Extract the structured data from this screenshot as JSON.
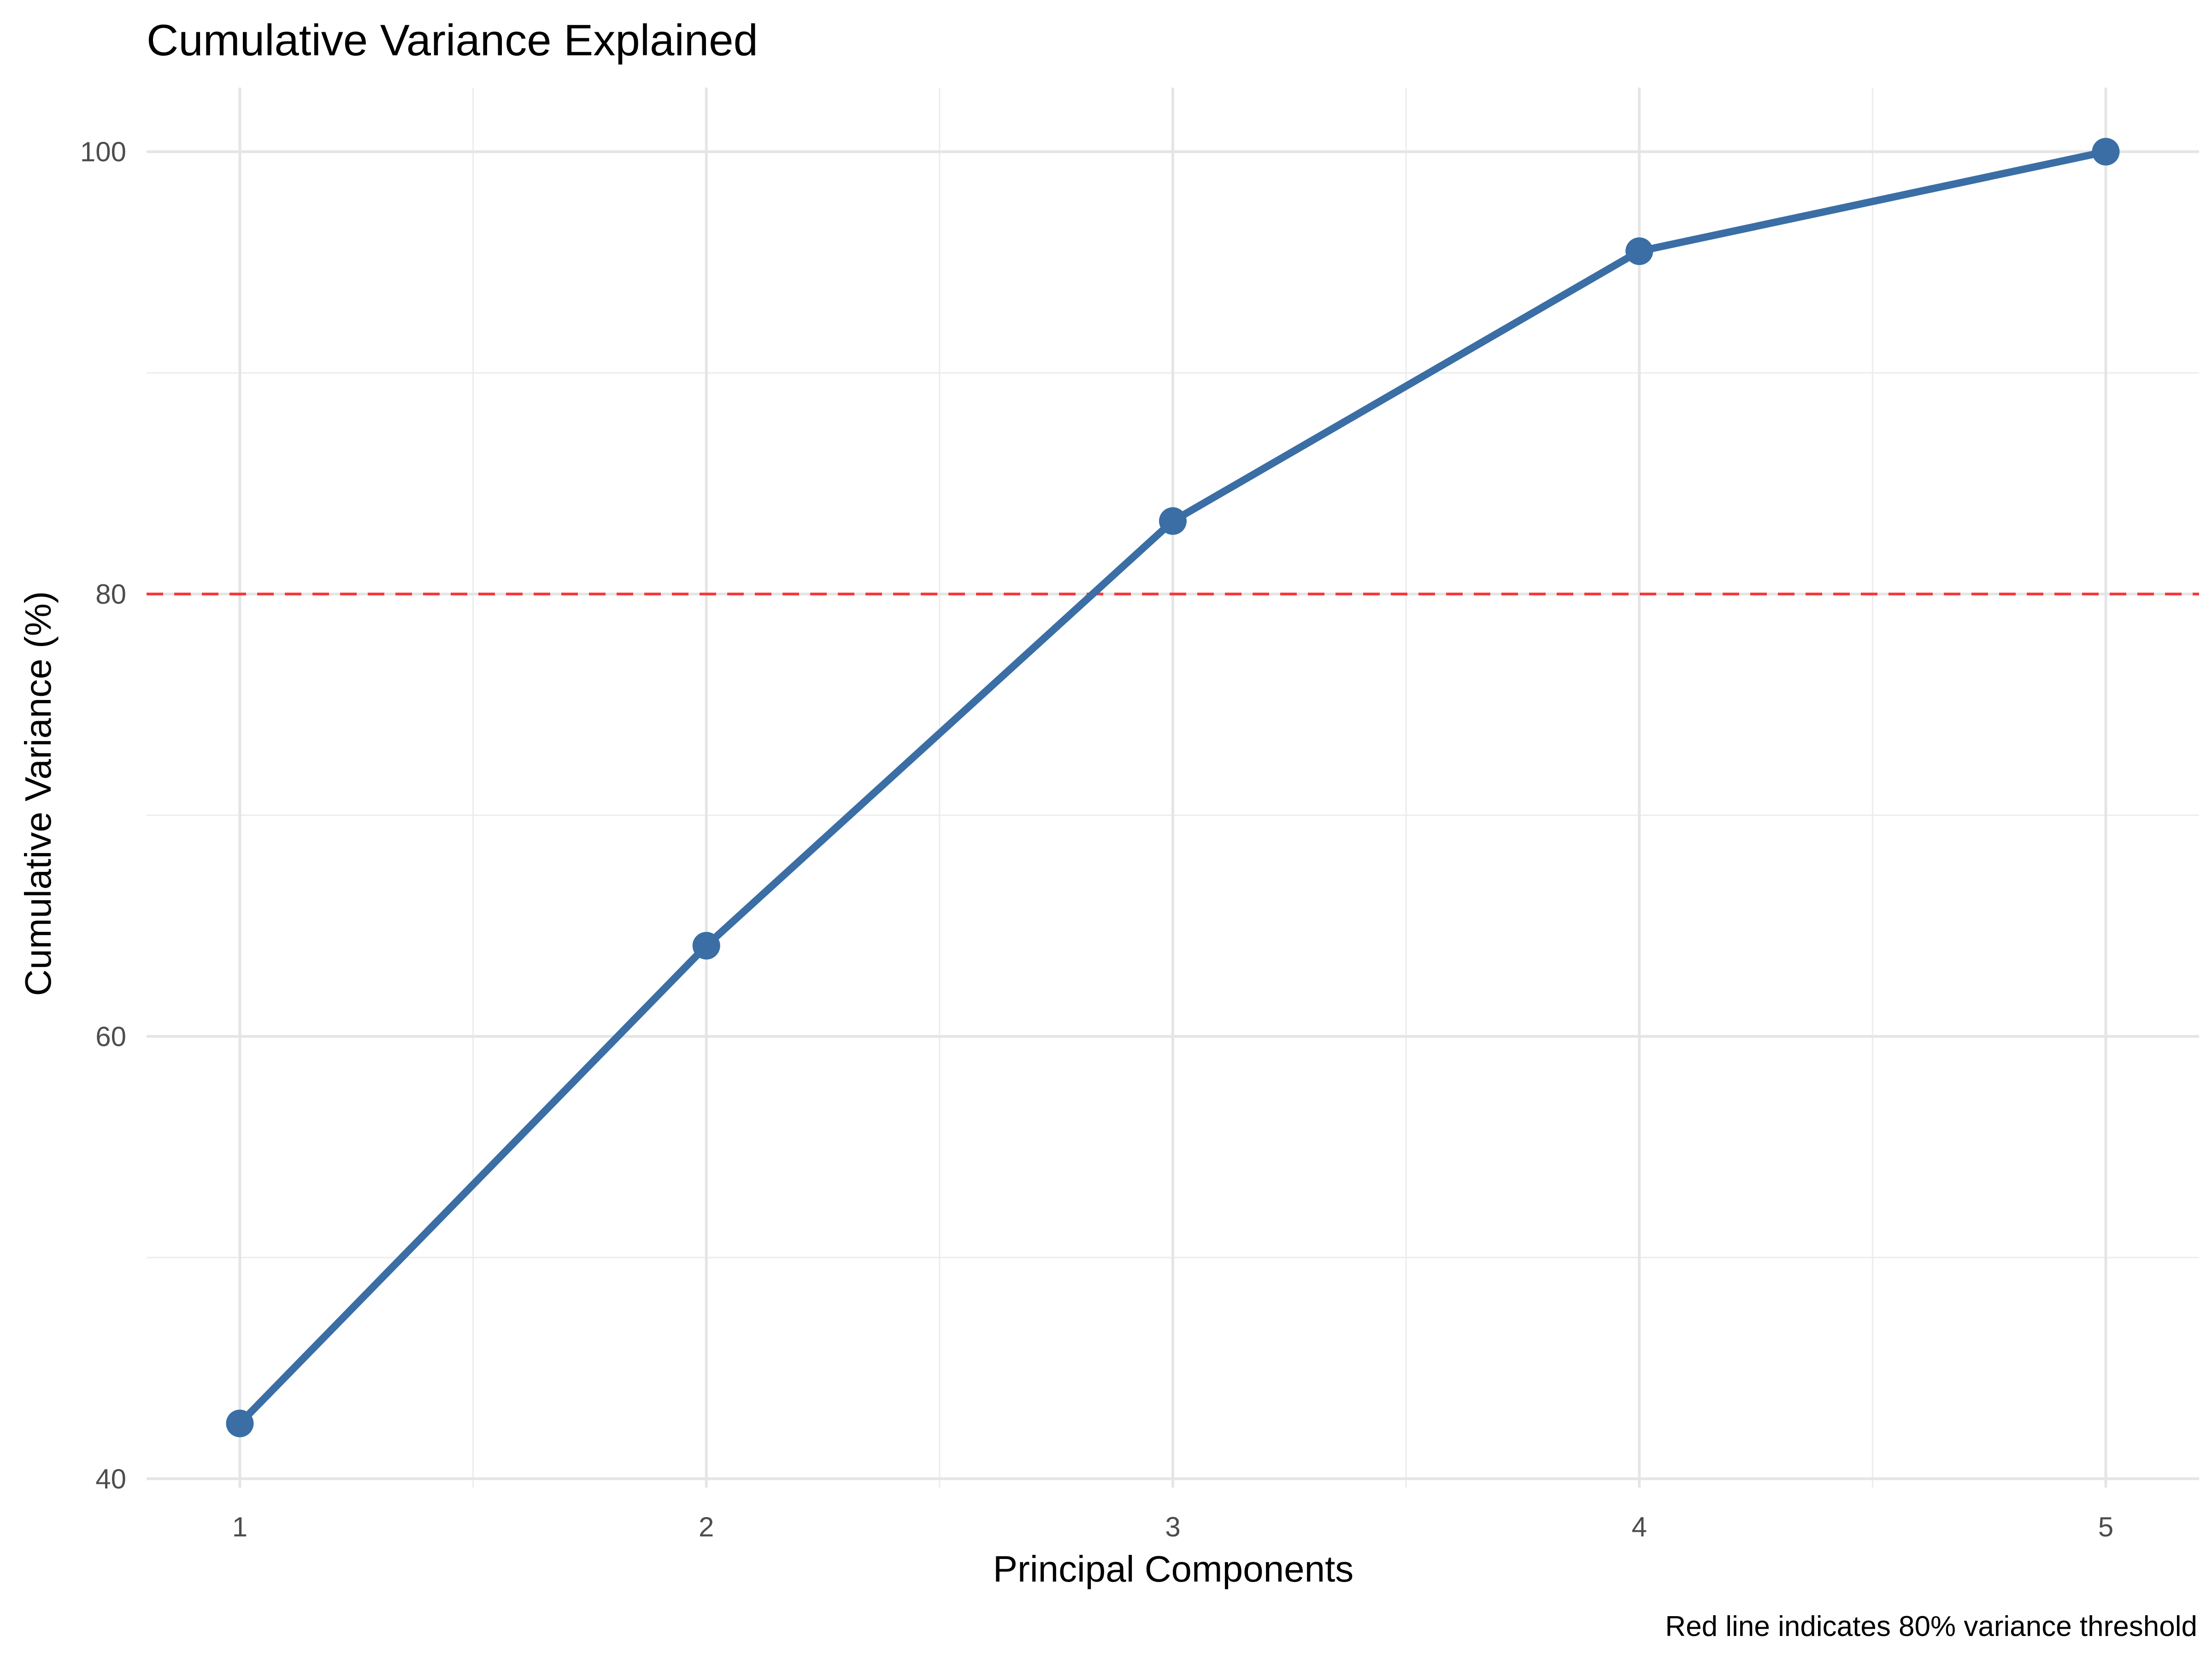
{
  "chart_data": {
    "type": "line",
    "title": "Cumulative Variance Explained",
    "xlabel": "Principal Components",
    "ylabel": "Cumulative Variance (%)",
    "caption": "Red line indicates 80% variance threshold",
    "x": [
      1,
      2,
      3,
      4,
      5
    ],
    "x_tick_labels": [
      "1",
      "2",
      "3",
      "4",
      "5"
    ],
    "y_ticks": [
      40,
      60,
      80,
      100
    ],
    "y_tick_labels": [
      "40",
      "60",
      "80",
      "100"
    ],
    "xlim": [
      0.8,
      5.2
    ],
    "ylim": [
      39.6,
      102.9
    ],
    "grid": true,
    "series": [
      {
        "values": [
          42.5,
          64.1,
          83.3,
          95.5,
          100.0
        ],
        "color": "#3A6EA5"
      }
    ],
    "reference_line": {
      "y": 80,
      "color": "#F8393B",
      "style": "dashed"
    }
  }
}
